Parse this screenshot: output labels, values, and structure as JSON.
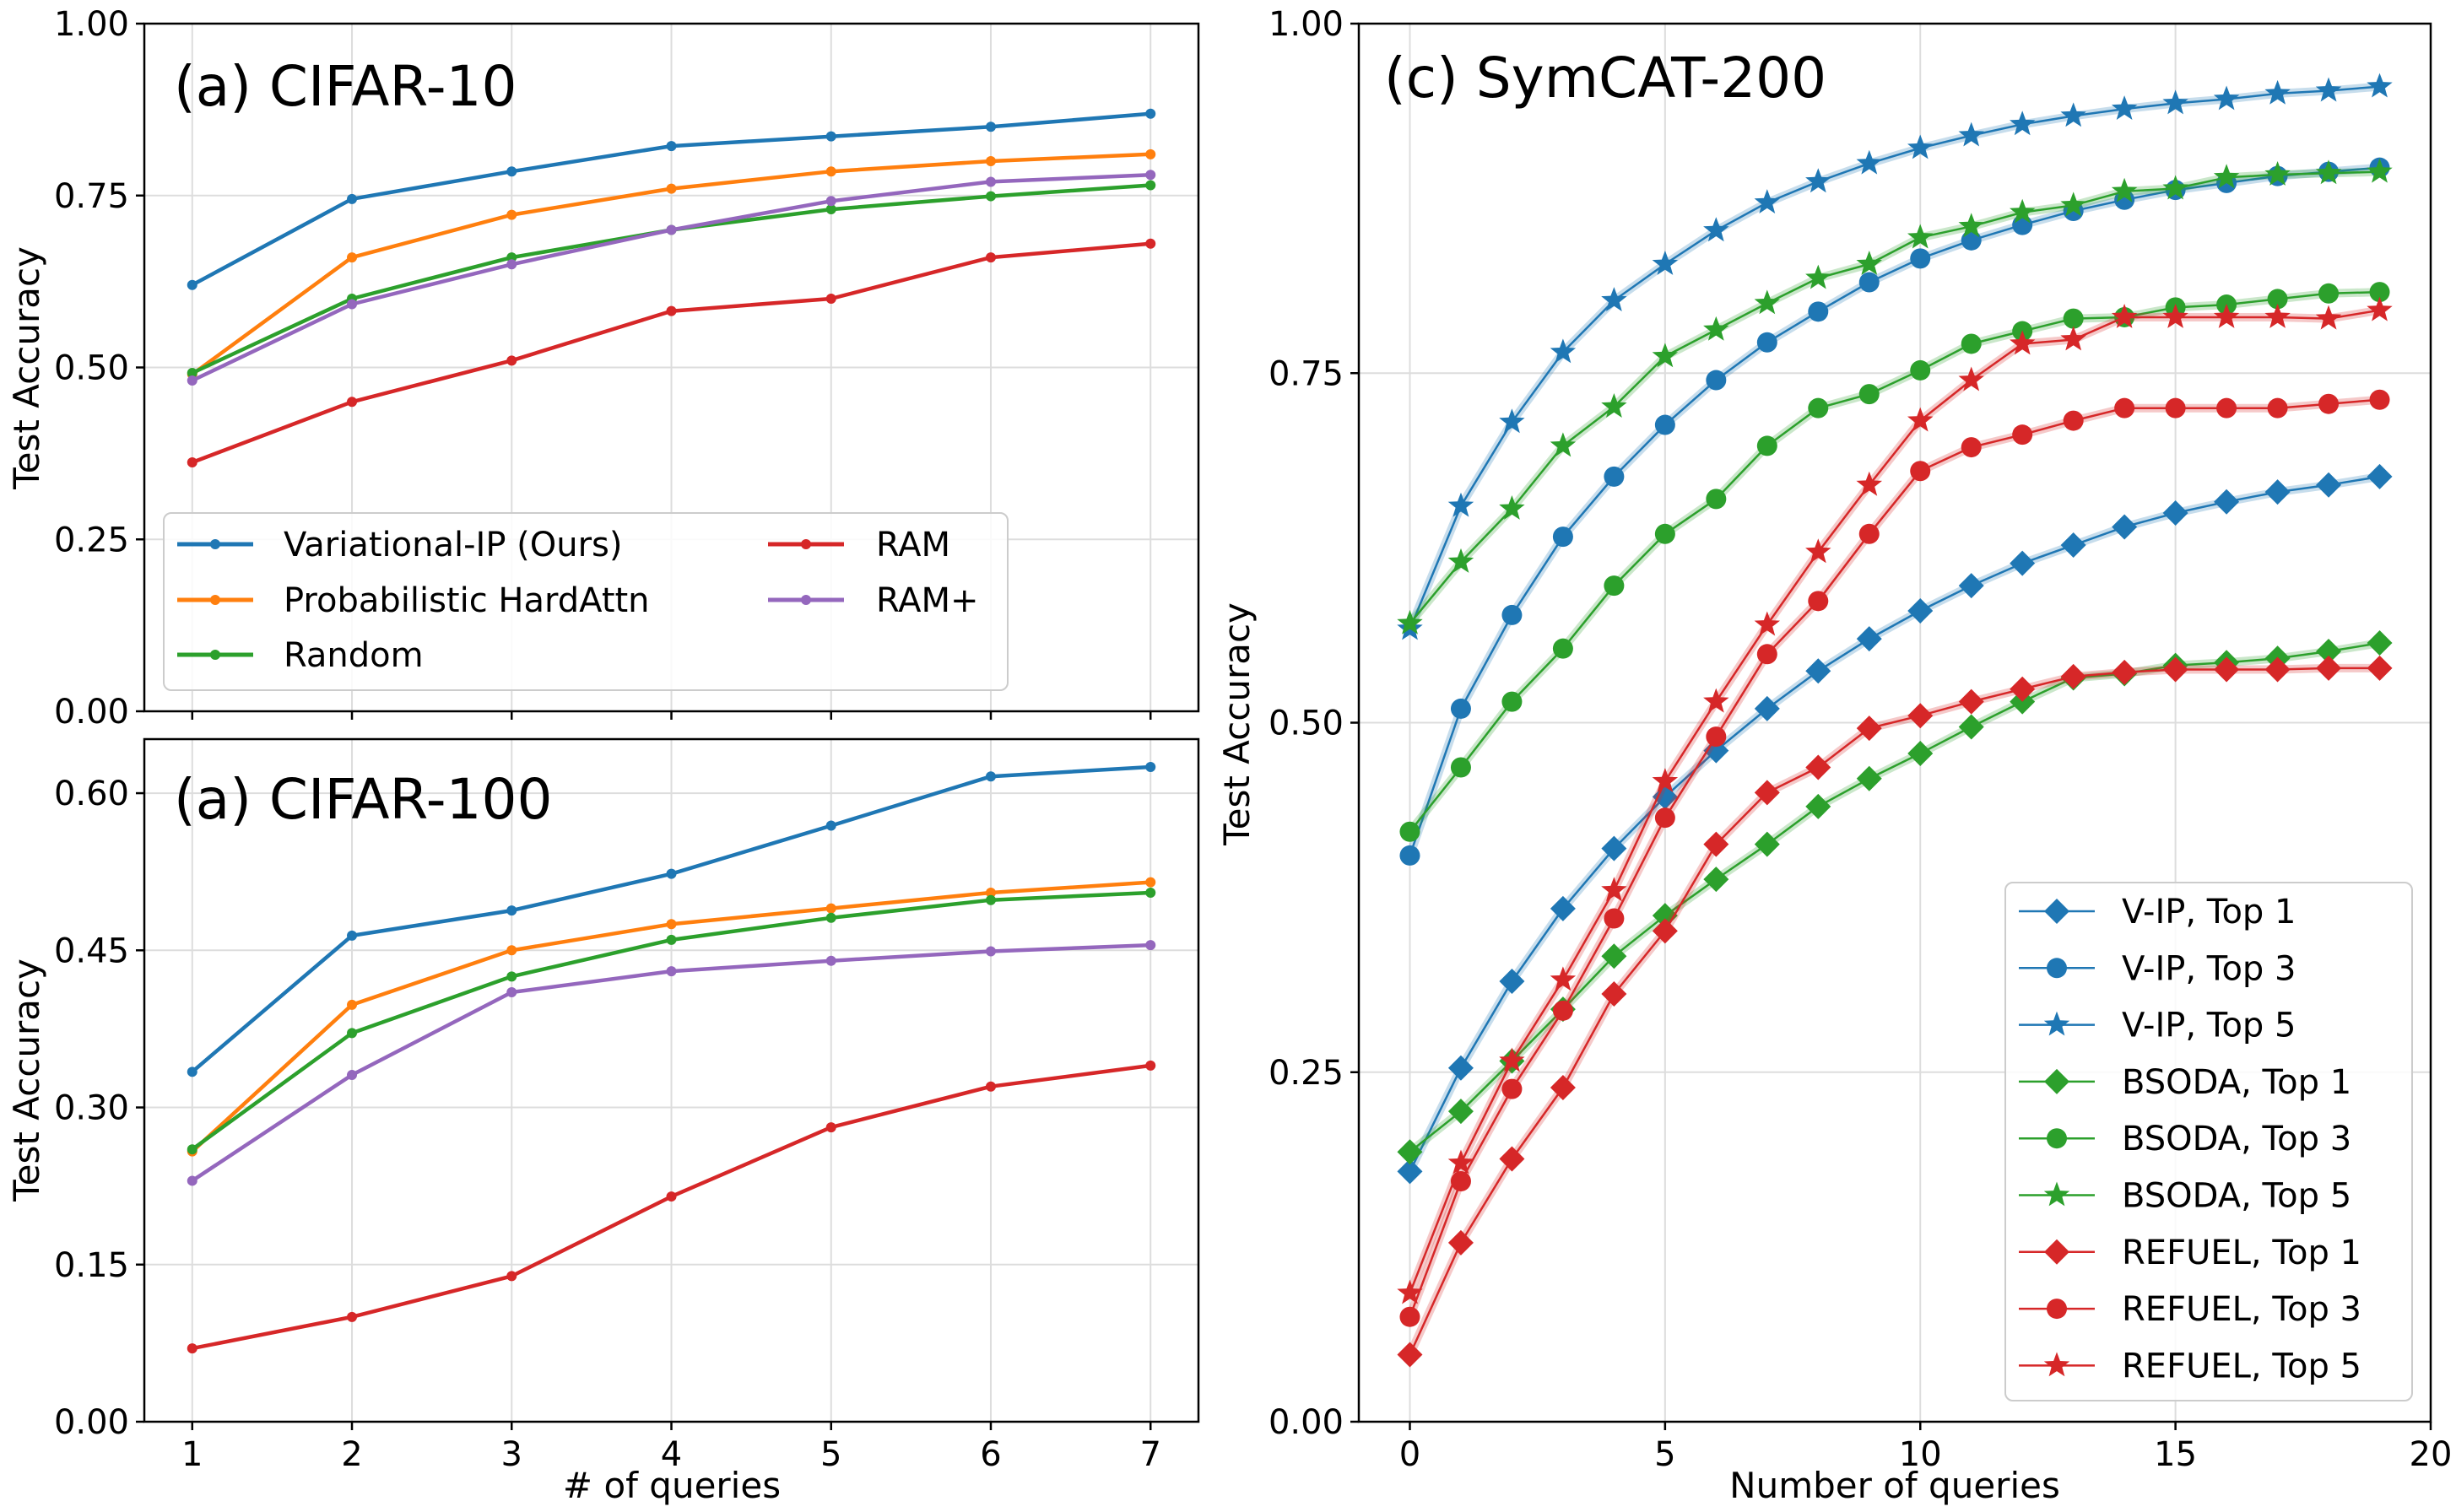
{
  "colors": {
    "blue": "#1f77b4",
    "orange": "#ff7f0e",
    "green": "#2ca02c",
    "red": "#d62728",
    "purple": "#9467bd",
    "grid": "#dddddd"
  },
  "chart_data": [
    {
      "type": "line",
      "title": "(a) CIFAR-10",
      "xlabel": "",
      "ylabel": "Test Accuracy",
      "xlim": [
        0.7,
        7.3
      ],
      "ylim": [
        0.0,
        1.0
      ],
      "xticks": [
        1,
        2,
        3,
        4,
        5,
        6,
        7
      ],
      "yticks": [
        0.0,
        0.25,
        0.5,
        0.75,
        1.0
      ],
      "ytick_labels": [
        "0.00",
        "0.25",
        "0.50",
        "0.75",
        "1.00"
      ],
      "show_xtick_labels": false,
      "grid": true,
      "legend_position": "lower-left",
      "legend_columns": 2,
      "x": [
        1,
        2,
        3,
        4,
        5,
        6,
        7
      ],
      "series": [
        {
          "name": "Variational-IP (Ours)",
          "color": "#1f77b4",
          "marker": "dot",
          "values": [
            0.62,
            0.745,
            0.785,
            0.822,
            0.836,
            0.85,
            0.869
          ]
        },
        {
          "name": "Probabilistic HardAttn",
          "color": "#ff7f0e",
          "marker": "dot",
          "values": [
            0.49,
            0.66,
            0.722,
            0.76,
            0.785,
            0.8,
            0.81
          ]
        },
        {
          "name": "Random",
          "color": "#2ca02c",
          "marker": "dot",
          "values": [
            0.492,
            0.6,
            0.66,
            0.7,
            0.73,
            0.749,
            0.765
          ]
        },
        {
          "name": "RAM",
          "color": "#d62728",
          "marker": "dot",
          "values": [
            0.362,
            0.45,
            0.51,
            0.582,
            0.6,
            0.66,
            0.68
          ]
        },
        {
          "name": "RAM+",
          "color": "#9467bd",
          "marker": "dot",
          "values": [
            0.481,
            0.592,
            0.65,
            0.7,
            0.742,
            0.77,
            0.78
          ]
        }
      ]
    },
    {
      "type": "line",
      "title": "(a) CIFAR-100",
      "xlabel": "# of queries",
      "ylabel": "Test Accuracy",
      "xlim": [
        0.7,
        7.3
      ],
      "ylim": [
        0.0,
        0.6516
      ],
      "xticks": [
        1,
        2,
        3,
        4,
        5,
        6,
        7
      ],
      "xtick_labels": [
        "1",
        "2",
        "3",
        "4",
        "5",
        "6",
        "7"
      ],
      "yticks": [
        0.0,
        0.15,
        0.3,
        0.45,
        0.6
      ],
      "ytick_labels": [
        "0.00",
        "0.15",
        "0.30",
        "0.45",
        "0.60"
      ],
      "grid": true,
      "x": [
        1,
        2,
        3,
        4,
        5,
        6,
        7
      ],
      "series": [
        {
          "name": "Variational-IP (Ours)",
          "color": "#1f77b4",
          "marker": "dot",
          "values": [
            0.334,
            0.464,
            0.488,
            0.523,
            0.569,
            0.616,
            0.625
          ]
        },
        {
          "name": "Probabilistic HardAttn",
          "color": "#ff7f0e",
          "marker": "dot",
          "values": [
            0.258,
            0.398,
            0.45,
            0.475,
            0.49,
            0.505,
            0.515
          ]
        },
        {
          "name": "Random",
          "color": "#2ca02c",
          "marker": "dot",
          "values": [
            0.26,
            0.371,
            0.425,
            0.46,
            0.481,
            0.498,
            0.505
          ]
        },
        {
          "name": "RAM",
          "color": "#d62728",
          "marker": "dot",
          "values": [
            0.07,
            0.1,
            0.139,
            0.215,
            0.281,
            0.32,
            0.34
          ]
        },
        {
          "name": "RAM+",
          "color": "#9467bd",
          "marker": "dot",
          "values": [
            0.23,
            0.331,
            0.41,
            0.43,
            0.44,
            0.449,
            0.455
          ]
        }
      ]
    },
    {
      "type": "line",
      "title": "(c) SymCAT-200",
      "xlabel": "Number of queries",
      "ylabel": "Test Accuracy",
      "xlim": [
        -1.0,
        20.0
      ],
      "ylim": [
        0.0,
        1.0
      ],
      "xticks": [
        0,
        5,
        10,
        15,
        20
      ],
      "xtick_labels": [
        "0",
        "5",
        "10",
        "15",
        "20"
      ],
      "yticks": [
        0.0,
        0.25,
        0.5,
        0.75,
        1.0
      ],
      "ytick_labels": [
        "0.00",
        "0.25",
        "0.50",
        "0.75",
        "1.00"
      ],
      "grid": true,
      "legend_position": "lower-right",
      "x": [
        0,
        1,
        2,
        3,
        4,
        5,
        6,
        7,
        8,
        9,
        10,
        11,
        12,
        13,
        14,
        15,
        16,
        17,
        18,
        19
      ],
      "series": [
        {
          "name": "V-IP, Top 1",
          "color": "#1f77b4",
          "marker": "diamond",
          "values": [
            0.179,
            0.253,
            0.315,
            0.367,
            0.41,
            0.447,
            0.48,
            0.51,
            0.537,
            0.56,
            0.58,
            0.598,
            0.614,
            0.627,
            0.64,
            0.65,
            0.658,
            0.665,
            0.67,
            0.676
          ]
        },
        {
          "name": "V-IP, Top 3",
          "color": "#1f77b4",
          "marker": "circle",
          "values": [
            0.405,
            0.51,
            0.577,
            0.633,
            0.676,
            0.713,
            0.745,
            0.772,
            0.794,
            0.815,
            0.832,
            0.845,
            0.856,
            0.866,
            0.874,
            0.881,
            0.886,
            0.891,
            0.894,
            0.897
          ]
        },
        {
          "name": "V-IP, Top 5",
          "color": "#1f77b4",
          "marker": "star",
          "values": [
            0.567,
            0.655,
            0.715,
            0.765,
            0.802,
            0.828,
            0.852,
            0.872,
            0.887,
            0.9,
            0.911,
            0.92,
            0.928,
            0.934,
            0.939,
            0.943,
            0.946,
            0.95,
            0.952,
            0.955
          ]
        },
        {
          "name": "BSODA, Top 1",
          "color": "#2ca02c",
          "marker": "diamond",
          "values": [
            0.193,
            0.222,
            0.258,
            0.295,
            0.333,
            0.362,
            0.388,
            0.413,
            0.44,
            0.46,
            0.478,
            0.497,
            0.515,
            0.532,
            0.535,
            0.541,
            0.543,
            0.546,
            0.551,
            0.557
          ]
        },
        {
          "name": "BSODA, Top 3",
          "color": "#2ca02c",
          "marker": "circle",
          "values": [
            0.422,
            0.468,
            0.515,
            0.553,
            0.598,
            0.635,
            0.66,
            0.698,
            0.725,
            0.735,
            0.752,
            0.771,
            0.78,
            0.789,
            0.79,
            0.797,
            0.799,
            0.803,
            0.807,
            0.808
          ]
        },
        {
          "name": "BSODA, Top 5",
          "color": "#2ca02c",
          "marker": "star",
          "values": [
            0.571,
            0.615,
            0.653,
            0.698,
            0.726,
            0.762,
            0.781,
            0.8,
            0.818,
            0.828,
            0.847,
            0.855,
            0.865,
            0.87,
            0.88,
            0.882,
            0.89,
            0.892,
            0.893,
            0.894
          ]
        },
        {
          "name": "REFUEL, Top 1",
          "color": "#d62728",
          "marker": "diamond",
          "values": [
            0.048,
            0.128,
            0.188,
            0.239,
            0.306,
            0.351,
            0.413,
            0.45,
            0.468,
            0.496,
            0.505,
            0.515,
            0.524,
            0.533,
            0.536,
            0.538,
            0.538,
            0.538,
            0.539,
            0.539
          ]
        },
        {
          "name": "REFUEL, Top 3",
          "color": "#d62728",
          "marker": "circle",
          "values": [
            0.075,
            0.172,
            0.238,
            0.294,
            0.36,
            0.432,
            0.49,
            0.549,
            0.587,
            0.635,
            0.68,
            0.697,
            0.706,
            0.716,
            0.725,
            0.725,
            0.725,
            0.725,
            0.728,
            0.731
          ]
        },
        {
          "name": "REFUEL, Top 5",
          "color": "#d62728",
          "marker": "star",
          "values": [
            0.092,
            0.185,
            0.258,
            0.316,
            0.38,
            0.458,
            0.515,
            0.57,
            0.622,
            0.67,
            0.716,
            0.745,
            0.771,
            0.774,
            0.79,
            0.79,
            0.79,
            0.79,
            0.789,
            0.795
          ]
        }
      ]
    }
  ]
}
